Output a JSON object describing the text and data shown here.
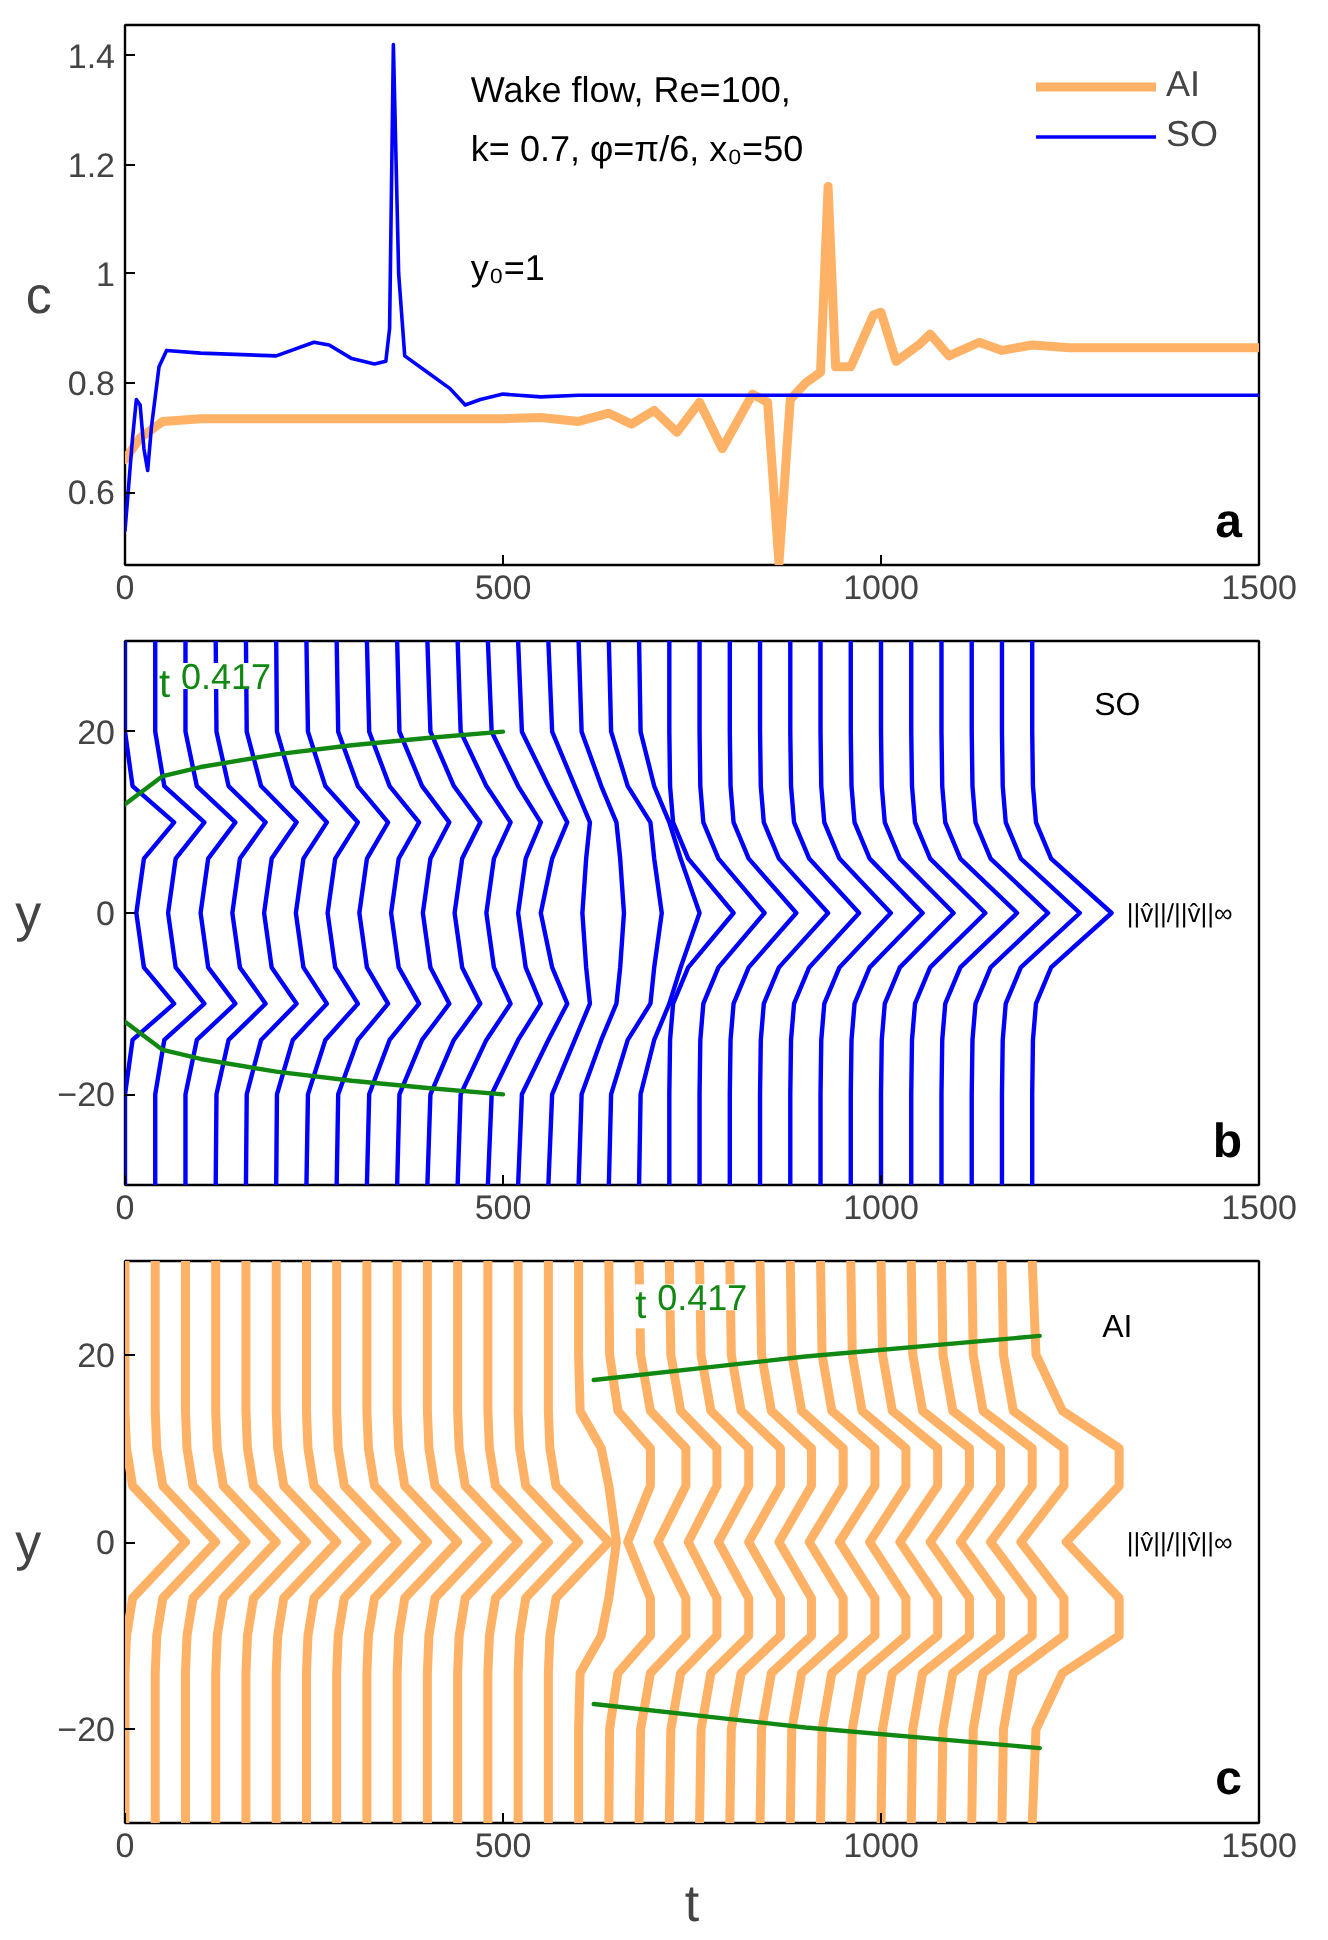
{
  "chart_data": [
    {
      "type": "line",
      "ylabel": "c",
      "xlim": [
        0,
        1500
      ],
      "ylim": [
        0.467,
        1.456
      ],
      "xticks": [
        0,
        500,
        1000,
        1500
      ],
      "yticks": [
        0.6,
        0.8,
        1,
        1.2,
        1.4
      ],
      "legend": "top right",
      "annotations": [
        "Wake flow, Re=100,",
        "k= 0.7, φ=π/6, x₀=50",
        "y₀=1",
        "a"
      ],
      "series": [
        {
          "name": "AI",
          "color": "#ffb266",
          "x": [
            0,
            20,
            50,
            100,
            500,
            550,
            600,
            640,
            670,
            700,
            730,
            760,
            790,
            830,
            850,
            865,
            880,
            900,
            920,
            930,
            940,
            960,
            990,
            1000,
            1020,
            1050,
            1065,
            1090,
            1130,
            1160,
            1200,
            1250,
            1500
          ],
          "values": [
            0.66,
            0.7,
            0.73,
            0.735,
            0.735,
            0.737,
            0.73,
            0.745,
            0.725,
            0.75,
            0.71,
            0.765,
            0.68,
            0.78,
            0.765,
            0.47,
            0.77,
            0.8,
            0.82,
            1.16,
            0.83,
            0.83,
            0.925,
            0.93,
            0.84,
            0.87,
            0.89,
            0.85,
            0.875,
            0.86,
            0.87,
            0.865,
            0.865
          ]
        },
        {
          "name": "SO",
          "color": "#0000ff",
          "x": [
            0,
            10,
            15,
            20,
            25,
            30,
            35,
            45,
            55,
            100,
            200,
            250,
            270,
            300,
            330,
            345,
            350,
            355,
            362,
            370,
            400,
            430,
            450,
            470,
            500,
            550,
            600,
            1500
          ],
          "values": [
            0.53,
            0.7,
            0.77,
            0.76,
            0.68,
            0.64,
            0.72,
            0.83,
            0.86,
            0.855,
            0.85,
            0.875,
            0.87,
            0.845,
            0.835,
            0.84,
            0.9,
            1.42,
            1.0,
            0.85,
            0.82,
            0.79,
            0.76,
            0.77,
            0.78,
            0.775,
            0.778,
            0.778
          ]
        }
      ]
    },
    {
      "type": "line",
      "ylabel": "y",
      "xlim": [
        0,
        1500
      ],
      "ylim": [
        -30,
        30
      ],
      "xticks": [
        0,
        500,
        1000,
        1500
      ],
      "yticks": [
        {
          "value": -20,
          "label": "−20"
        },
        0,
        20
      ],
      "annotations": [
        "SO",
        "b",
        "||v̂||/||v̂||∞",
        "t$^{0.417}$"
      ],
      "series": [
        {
          "color": "#0000ff",
          "x": [
            0,
            0,
            10,
            65,
            25,
            15,
            25,
            65,
            10,
            0,
            0
          ],
          "values": [
            -30,
            -20,
            -14,
            -10,
            -6,
            0,
            6,
            10,
            14,
            20,
            30
          ]
        },
        {
          "color": "#0000ff",
          "x": [
            40,
            40,
            52,
            105,
            67,
            57,
            67,
            105,
            52,
            40,
            40
          ],
          "values": [
            -30,
            -20,
            -14,
            -10,
            -6,
            0,
            6,
            10,
            14,
            20,
            30
          ]
        },
        {
          "color": "#0000ff",
          "x": [
            80,
            80,
            95,
            146,
            110,
            100,
            110,
            146,
            95,
            80,
            80
          ],
          "values": [
            -30,
            -20,
            -14,
            -10,
            -6,
            0,
            6,
            10,
            14,
            20,
            30
          ]
        },
        {
          "color": "#0000ff",
          "x": [
            120,
            121,
            137,
            186,
            152,
            142,
            152,
            186,
            137,
            121,
            120
          ],
          "values": [
            -30,
            -20,
            -14,
            -10,
            -6,
            0,
            6,
            10,
            14,
            20,
            30
          ]
        },
        {
          "color": "#0000ff",
          "x": [
            160,
            161,
            180,
            227,
            194,
            184,
            194,
            227,
            180,
            161,
            160
          ],
          "values": [
            -30,
            -20,
            -14,
            -10,
            -6,
            0,
            6,
            10,
            14,
            20,
            30
          ]
        },
        {
          "color": "#0000ff",
          "x": [
            200,
            201,
            222,
            267,
            236,
            226,
            236,
            267,
            222,
            201,
            200
          ],
          "values": [
            -30,
            -20,
            -14,
            -10,
            -6,
            0,
            6,
            10,
            14,
            20,
            30
          ]
        },
        {
          "color": "#0000ff",
          "x": [
            240,
            242,
            265,
            308,
            278,
            268,
            278,
            308,
            265,
            242,
            240
          ],
          "values": [
            -30,
            -20,
            -14,
            -10,
            -6,
            0,
            6,
            10,
            14,
            20,
            30
          ]
        },
        {
          "color": "#0000ff",
          "x": [
            280,
            282,
            308,
            348,
            320,
            310,
            320,
            348,
            308,
            282,
            280
          ],
          "values": [
            -30,
            -20,
            -14,
            -10,
            -6,
            0,
            6,
            10,
            14,
            20,
            30
          ]
        },
        {
          "color": "#0000ff",
          "x": [
            320,
            323,
            350,
            389,
            362,
            352,
            362,
            389,
            350,
            323,
            320
          ],
          "values": [
            -30,
            -20,
            -14,
            -10,
            -6,
            0,
            6,
            10,
            14,
            20,
            30
          ]
        },
        {
          "color": "#0000ff",
          "x": [
            360,
            363,
            393,
            429,
            404,
            394,
            404,
            429,
            393,
            363,
            360
          ],
          "values": [
            -30,
            -20,
            -14,
            -10,
            -6,
            0,
            6,
            10,
            14,
            20,
            30
          ]
        },
        {
          "color": "#0000ff",
          "x": [
            400,
            404,
            435,
            470,
            446,
            436,
            446,
            470,
            435,
            404,
            400
          ],
          "values": [
            -30,
            -20,
            -14,
            -10,
            -6,
            0,
            6,
            10,
            14,
            20,
            30
          ]
        },
        {
          "color": "#0000ff",
          "x": [
            440,
            444,
            478,
            510,
            488,
            478,
            488,
            510,
            478,
            444,
            440
          ],
          "values": [
            -30,
            -20,
            -14,
            -10,
            -6,
            0,
            6,
            10,
            14,
            20,
            30
          ]
        },
        {
          "color": "#0000ff",
          "x": [
            480,
            485,
            520,
            550,
            530,
            520,
            530,
            550,
            520,
            485,
            480
          ],
          "values": [
            -30,
            -20,
            -14,
            -10,
            -6,
            0,
            6,
            10,
            14,
            20,
            30
          ]
        },
        {
          "color": "#0000ff",
          "x": [
            520,
            525,
            560,
            585,
            565,
            550,
            565,
            585,
            560,
            525,
            520
          ],
          "values": [
            -30,
            -20,
            -14,
            -10,
            -6,
            0,
            6,
            10,
            14,
            20,
            30
          ]
        },
        {
          "color": "#0000ff",
          "x": [
            560,
            565,
            595,
            615,
            610,
            605,
            610,
            615,
            595,
            565,
            560
          ],
          "values": [
            -30,
            -20,
            -14,
            -10,
            -6,
            0,
            6,
            10,
            14,
            20,
            30
          ]
        },
        {
          "color": "#0000ff",
          "x": [
            600,
            604,
            630,
            650,
            655,
            660,
            655,
            650,
            630,
            604,
            600
          ],
          "values": [
            -30,
            -20,
            -14,
            -10,
            -6,
            0,
            6,
            10,
            14,
            20,
            30
          ]
        },
        {
          "color": "#0000ff",
          "x": [
            640,
            643,
            665,
            695,
            700,
            710,
            700,
            695,
            665,
            643,
            640
          ],
          "values": [
            -30,
            -20,
            -14,
            -10,
            -6,
            0,
            6,
            10,
            14,
            20,
            30
          ]
        },
        {
          "color": "#0000ff",
          "x": [
            680,
            682,
            700,
            720,
            735,
            760,
            735,
            720,
            700,
            682,
            680
          ],
          "values": [
            -30,
            -20,
            -14,
            -10,
            -6,
            0,
            6,
            10,
            14,
            20,
            30
          ]
        },
        {
          "color": "#0000ff",
          "x": [
            720,
            720,
            721,
            725,
            745,
            805,
            745,
            725,
            721,
            720,
            720
          ],
          "values": [
            -30,
            -20,
            -14,
            -10,
            -6,
            0,
            6,
            10,
            14,
            20,
            30
          ]
        },
        {
          "color": "#0000ff",
          "x": [
            760,
            760,
            761,
            765,
            785,
            846,
            785,
            765,
            761,
            760,
            760
          ],
          "values": [
            -30,
            -20,
            -14,
            -10,
            -6,
            0,
            6,
            10,
            14,
            20,
            30
          ]
        },
        {
          "color": "#0000ff",
          "x": [
            800,
            800,
            801,
            805,
            825,
            888,
            825,
            805,
            801,
            800,
            800
          ],
          "values": [
            -30,
            -20,
            -14,
            -10,
            -6,
            0,
            6,
            10,
            14,
            20,
            30
          ]
        },
        {
          "color": "#0000ff",
          "x": [
            840,
            840,
            841,
            845,
            865,
            930,
            865,
            845,
            841,
            840,
            840
          ],
          "values": [
            -30,
            -20,
            -14,
            -10,
            -6,
            0,
            6,
            10,
            14,
            20,
            30
          ]
        },
        {
          "color": "#0000ff",
          "x": [
            880,
            880,
            881,
            885,
            905,
            971,
            905,
            885,
            881,
            880,
            880
          ],
          "values": [
            -30,
            -20,
            -14,
            -10,
            -6,
            0,
            6,
            10,
            14,
            20,
            30
          ]
        },
        {
          "color": "#0000ff",
          "x": [
            920,
            920,
            921,
            925,
            945,
            1013,
            945,
            925,
            921,
            920,
            920
          ],
          "values": [
            -30,
            -20,
            -14,
            -10,
            -6,
            0,
            6,
            10,
            14,
            20,
            30
          ]
        },
        {
          "color": "#0000ff",
          "x": [
            960,
            960,
            961,
            965,
            985,
            1055,
            985,
            965,
            961,
            960,
            960
          ],
          "values": [
            -30,
            -20,
            -14,
            -10,
            -6,
            0,
            6,
            10,
            14,
            20,
            30
          ]
        },
        {
          "color": "#0000ff",
          "x": [
            1000,
            1000,
            1001,
            1005,
            1025,
            1096,
            1025,
            1005,
            1001,
            1000,
            1000
          ],
          "values": [
            -30,
            -20,
            -14,
            -10,
            -6,
            0,
            6,
            10,
            14,
            20,
            30
          ]
        },
        {
          "color": "#0000ff",
          "x": [
            1040,
            1040,
            1041,
            1045,
            1065,
            1138,
            1065,
            1045,
            1041,
            1040,
            1040
          ],
          "values": [
            -30,
            -20,
            -14,
            -10,
            -6,
            0,
            6,
            10,
            14,
            20,
            30
          ]
        },
        {
          "color": "#0000ff",
          "x": [
            1080,
            1080,
            1081,
            1085,
            1105,
            1180,
            1105,
            1085,
            1081,
            1080,
            1080
          ],
          "values": [
            -30,
            -20,
            -14,
            -10,
            -6,
            0,
            6,
            10,
            14,
            20,
            30
          ]
        },
        {
          "color": "#0000ff",
          "x": [
            1120,
            1120,
            1121,
            1125,
            1145,
            1221,
            1145,
            1125,
            1121,
            1120,
            1120
          ],
          "values": [
            -30,
            -20,
            -14,
            -10,
            -6,
            0,
            6,
            10,
            14,
            20,
            30
          ]
        },
        {
          "color": "#0000ff",
          "x": [
            1160,
            1160,
            1161,
            1165,
            1185,
            1263,
            1185,
            1165,
            1161,
            1160,
            1160
          ],
          "values": [
            -30,
            -20,
            -14,
            -10,
            -6,
            0,
            6,
            10,
            14,
            20,
            30
          ]
        },
        {
          "color": "#0000ff",
          "x": [
            1200,
            1200,
            1201,
            1205,
            1225,
            1305,
            1225,
            1205,
            1201,
            1200,
            1200
          ],
          "values": [
            -30,
            -20,
            -14,
            -10,
            -6,
            0,
            6,
            10,
            14,
            20,
            30
          ]
        },
        {
          "color": "#118811",
          "x": [
            0,
            50,
            100,
            200,
            300,
            400,
            500
          ],
          "values": [
            12,
            15.1,
            16.1,
            17.5,
            18.5,
            19.3,
            20
          ]
        },
        {
          "color": "#118811",
          "x": [
            0,
            50,
            100,
            200,
            300,
            400,
            500
          ],
          "values": [
            -12,
            -15.1,
            -16.1,
            -17.5,
            -18.5,
            -19.3,
            -20
          ]
        }
      ]
    },
    {
      "type": "line",
      "ylabel": "y",
      "xlabel": "t",
      "xlim": [
        0,
        1500
      ],
      "ylim": [
        -30,
        30
      ],
      "xticks": [
        0,
        500,
        1000,
        1500
      ],
      "yticks": [
        {
          "value": -20,
          "label": "−20"
        },
        0,
        20
      ],
      "annotations": [
        "AI",
        "c",
        "||v̂||/||v̂||∞",
        "t$^{0.417}$"
      ],
      "series": [
        {
          "color": "#ffb266",
          "x": [
            0,
            0,
            0,
            2,
            10,
            80,
            10,
            2,
            0,
            0,
            0
          ],
          "values": [
            -30,
            -20,
            -14,
            -10,
            -6,
            0,
            6,
            10,
            14,
            20,
            30
          ]
        },
        {
          "color": "#ffb266",
          "x": [
            40,
            40,
            40,
            42,
            50,
            120,
            50,
            42,
            40,
            40,
            40
          ],
          "values": [
            -30,
            -20,
            -14,
            -10,
            -6,
            0,
            6,
            10,
            14,
            20,
            30
          ]
        },
        {
          "color": "#ffb266",
          "x": [
            80,
            80,
            80,
            82,
            90,
            160,
            90,
            82,
            80,
            80,
            80
          ],
          "values": [
            -30,
            -20,
            -14,
            -10,
            -6,
            0,
            6,
            10,
            14,
            20,
            30
          ]
        },
        {
          "color": "#ffb266",
          "x": [
            120,
            120,
            120,
            122,
            130,
            200,
            130,
            122,
            120,
            120,
            120
          ],
          "values": [
            -30,
            -20,
            -14,
            -10,
            -6,
            0,
            6,
            10,
            14,
            20,
            30
          ]
        },
        {
          "color": "#ffb266",
          "x": [
            160,
            160,
            160,
            162,
            170,
            240,
            170,
            162,
            160,
            160,
            160
          ],
          "values": [
            -30,
            -20,
            -14,
            -10,
            -6,
            0,
            6,
            10,
            14,
            20,
            30
          ]
        },
        {
          "color": "#ffb266",
          "x": [
            200,
            200,
            200,
            202,
            210,
            280,
            210,
            202,
            200,
            200,
            200
          ],
          "values": [
            -30,
            -20,
            -14,
            -10,
            -6,
            0,
            6,
            10,
            14,
            20,
            30
          ]
        },
        {
          "color": "#ffb266",
          "x": [
            240,
            240,
            240,
            242,
            250,
            320,
            250,
            242,
            240,
            240,
            240
          ],
          "values": [
            -30,
            -20,
            -14,
            -10,
            -6,
            0,
            6,
            10,
            14,
            20,
            30
          ]
        },
        {
          "color": "#ffb266",
          "x": [
            280,
            280,
            280,
            282,
            290,
            360,
            290,
            282,
            280,
            280,
            280
          ],
          "values": [
            -30,
            -20,
            -14,
            -10,
            -6,
            0,
            6,
            10,
            14,
            20,
            30
          ]
        },
        {
          "color": "#ffb266",
          "x": [
            320,
            320,
            320,
            322,
            330,
            400,
            330,
            322,
            320,
            320,
            320
          ],
          "values": [
            -30,
            -20,
            -14,
            -10,
            -6,
            0,
            6,
            10,
            14,
            20,
            30
          ]
        },
        {
          "color": "#ffb266",
          "x": [
            360,
            360,
            360,
            362,
            370,
            440,
            370,
            362,
            360,
            360,
            360
          ],
          "values": [
            -30,
            -20,
            -14,
            -10,
            -6,
            0,
            6,
            10,
            14,
            20,
            30
          ]
        },
        {
          "color": "#ffb266",
          "x": [
            400,
            400,
            400,
            402,
            410,
            480,
            410,
            402,
            400,
            400,
            400
          ],
          "values": [
            -30,
            -20,
            -14,
            -10,
            -6,
            0,
            6,
            10,
            14,
            20,
            30
          ]
        },
        {
          "color": "#ffb266",
          "x": [
            440,
            440,
            440,
            442,
            450,
            520,
            450,
            442,
            440,
            440,
            440
          ],
          "values": [
            -30,
            -20,
            -14,
            -10,
            -6,
            0,
            6,
            10,
            14,
            20,
            30
          ]
        },
        {
          "color": "#ffb266",
          "x": [
            480,
            480,
            480,
            482,
            490,
            560,
            490,
            482,
            480,
            480,
            480
          ],
          "values": [
            -30,
            -20,
            -14,
            -10,
            -6,
            0,
            6,
            10,
            14,
            20,
            30
          ]
        },
        {
          "color": "#ffb266",
          "x": [
            520,
            520,
            520,
            522,
            530,
            600,
            530,
            522,
            520,
            520,
            520
          ],
          "values": [
            -30,
            -20,
            -14,
            -10,
            -6,
            0,
            6,
            10,
            14,
            20,
            30
          ]
        },
        {
          "color": "#ffb266",
          "x": [
            560,
            560,
            560,
            562,
            570,
            640,
            570,
            562,
            560,
            560,
            560
          ],
          "values": [
            -30,
            -20,
            -14,
            -10,
            -6,
            0,
            6,
            10,
            14,
            20,
            30
          ]
        },
        {
          "color": "#ffb266",
          "x": [
            600,
            600,
            602,
            630,
            640,
            650,
            640,
            630,
            602,
            600,
            600
          ],
          "values": [
            -30,
            -20,
            -14,
            -10,
            -6,
            0,
            6,
            10,
            14,
            20,
            30
          ]
        },
        {
          "color": "#ffb266",
          "x": [
            640,
            641,
            652,
            695,
            695,
            665,
            695,
            695,
            652,
            641,
            640
          ],
          "values": [
            -30,
            -20,
            -14,
            -10,
            -6,
            0,
            6,
            10,
            14,
            20,
            30
          ]
        },
        {
          "color": "#ffb266",
          "x": [
            680,
            682,
            695,
            742,
            742,
            705,
            742,
            742,
            695,
            682,
            680
          ],
          "values": [
            -30,
            -20,
            -14,
            -10,
            -6,
            0,
            6,
            10,
            14,
            20,
            30
          ]
        },
        {
          "color": "#ffb266",
          "x": [
            720,
            722,
            735,
            783,
            783,
            745,
            783,
            783,
            735,
            722,
            720
          ],
          "values": [
            -30,
            -20,
            -14,
            -10,
            -6,
            0,
            6,
            10,
            14,
            20,
            30
          ]
        },
        {
          "color": "#ffb266",
          "x": [
            760,
            762,
            775,
            825,
            825,
            785,
            825,
            825,
            775,
            762,
            760
          ],
          "values": [
            -30,
            -20,
            -14,
            -10,
            -6,
            0,
            6,
            10,
            14,
            20,
            30
          ]
        },
        {
          "color": "#ffb266",
          "x": [
            800,
            802,
            815,
            867,
            867,
            825,
            867,
            867,
            815,
            802,
            800
          ],
          "values": [
            -30,
            -20,
            -14,
            -10,
            -6,
            0,
            6,
            10,
            14,
            20,
            30
          ]
        },
        {
          "color": "#ffb266",
          "x": [
            840,
            842,
            855,
            908,
            908,
            865,
            908,
            908,
            855,
            842,
            840
          ],
          "values": [
            -30,
            -20,
            -14,
            -10,
            -6,
            0,
            6,
            10,
            14,
            20,
            30
          ]
        },
        {
          "color": "#ffb266",
          "x": [
            880,
            882,
            895,
            950,
            950,
            905,
            950,
            950,
            895,
            882,
            880
          ],
          "values": [
            -30,
            -20,
            -14,
            -10,
            -6,
            0,
            6,
            10,
            14,
            20,
            30
          ]
        },
        {
          "color": "#ffb266",
          "x": [
            920,
            922,
            935,
            992,
            992,
            945,
            992,
            992,
            935,
            922,
            920
          ],
          "values": [
            -30,
            -20,
            -14,
            -10,
            -6,
            0,
            6,
            10,
            14,
            20,
            30
          ]
        },
        {
          "color": "#ffb266",
          "x": [
            960,
            962,
            975,
            1033,
            1033,
            985,
            1033,
            1033,
            975,
            962,
            960
          ],
          "values": [
            -30,
            -20,
            -14,
            -10,
            -6,
            0,
            6,
            10,
            14,
            20,
            30
          ]
        },
        {
          "color": "#ffb266",
          "x": [
            1000,
            1002,
            1015,
            1075,
            1075,
            1025,
            1075,
            1075,
            1015,
            1002,
            1000
          ],
          "values": [
            -30,
            -20,
            -14,
            -10,
            -6,
            0,
            6,
            10,
            14,
            20,
            30
          ]
        },
        {
          "color": "#ffb266",
          "x": [
            1040,
            1042,
            1055,
            1117,
            1117,
            1065,
            1117,
            1117,
            1055,
            1042,
            1040
          ],
          "values": [
            -30,
            -20,
            -14,
            -10,
            -6,
            0,
            6,
            10,
            14,
            20,
            30
          ]
        },
        {
          "color": "#ffb266",
          "x": [
            1080,
            1082,
            1095,
            1158,
            1158,
            1105,
            1158,
            1158,
            1095,
            1082,
            1080
          ],
          "values": [
            -30,
            -20,
            -14,
            -10,
            -6,
            0,
            6,
            10,
            14,
            20,
            30
          ]
        },
        {
          "color": "#ffb266",
          "x": [
            1120,
            1122,
            1135,
            1200,
            1200,
            1145,
            1200,
            1200,
            1135,
            1122,
            1120
          ],
          "values": [
            -30,
            -20,
            -14,
            -10,
            -6,
            0,
            6,
            10,
            14,
            20,
            30
          ]
        },
        {
          "color": "#ffb266",
          "x": [
            1160,
            1162,
            1175,
            1242,
            1242,
            1185,
            1242,
            1242,
            1175,
            1162,
            1160
          ],
          "values": [
            -30,
            -20,
            -14,
            -10,
            -6,
            0,
            6,
            10,
            14,
            20,
            30
          ]
        },
        {
          "color": "#ffb266",
          "x": [
            1200,
            1205,
            1240,
            1315,
            1315,
            1245,
            1315,
            1315,
            1240,
            1205,
            1200
          ],
          "values": [
            -30,
            -20,
            -14,
            -10,
            -6,
            0,
            6,
            10,
            14,
            20,
            30
          ]
        },
        {
          "color": "#118811",
          "x": [
            620,
            900,
            1210
          ],
          "values": [
            17.3,
            19.8,
            22
          ]
        },
        {
          "color": "#118811",
          "x": [
            620,
            900,
            1210
          ],
          "values": [
            -17.3,
            -19.8,
            -22
          ]
        }
      ]
    }
  ]
}
